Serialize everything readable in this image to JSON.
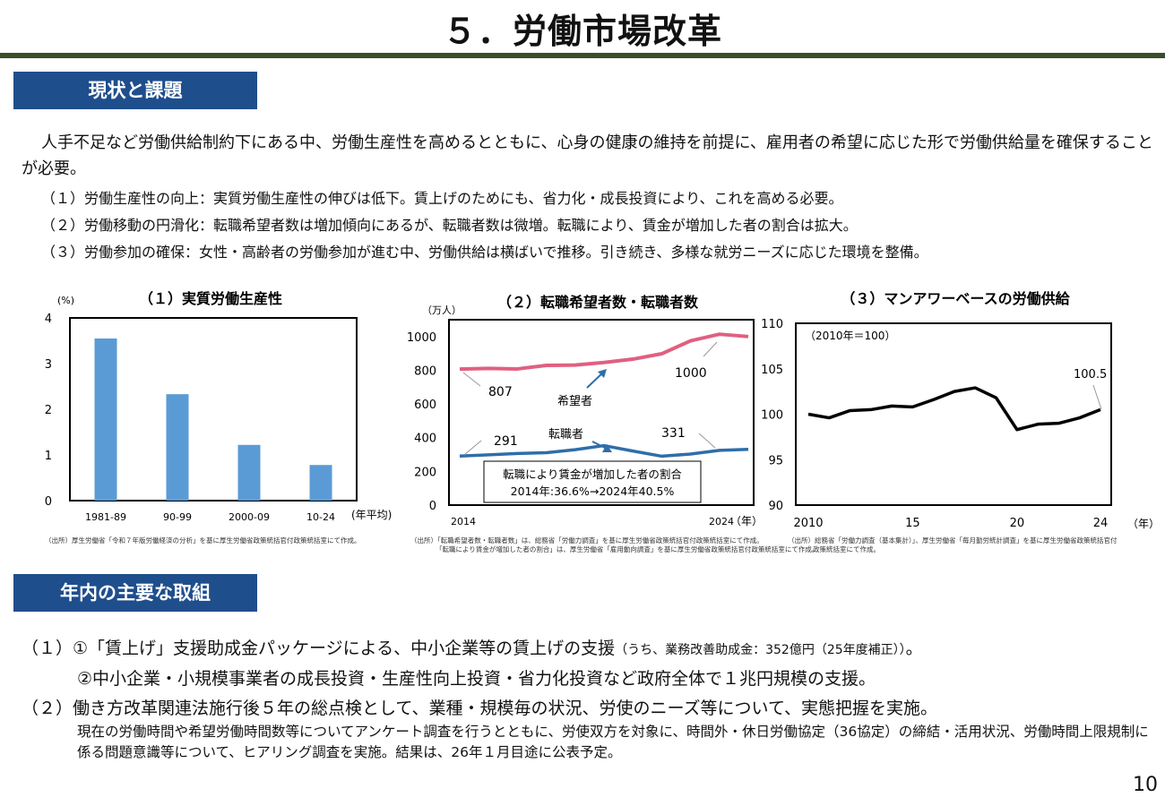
{
  "title": "５．労働市場改革",
  "section1": {
    "heading": "現状と課題",
    "intro": "人手不足など労働供給制約下にある中、労働生産性を高めるとともに、心身の健康の維持を前提に、雇用者の希望に応じた形で労働供給量を確保することが必要。",
    "points": [
      "（１）労働生産性の向上：実質労働生産性の伸びは低下。賃上げのためにも、省力化・成長投資により、これを高める必要。",
      "（２）労働移動の円滑化：転職希望者数は増加傾向にあるが、転職者数は微増。転職により、賃金が増加した者の割合は拡大。",
      "（３）労働参加の確保：女性・高齢者の労働参加が進む中、労働供給は横ばいで推移。引き続き、多様な就労ニーズに応じた環境を整備。"
    ]
  },
  "chart_data": [
    {
      "type": "bar",
      "title": "（１）実質労働生産性",
      "ylabel": "(%)",
      "xlabel": "(年平均)",
      "categories": [
        "1981-89",
        "90-99",
        "2000-09",
        "10-24"
      ],
      "values": [
        3.55,
        2.33,
        1.22,
        0.78
      ],
      "ylim": [
        0,
        4
      ],
      "yticks": [
        "0",
        "1",
        "2",
        "3",
        "4"
      ],
      "color": "#5b9bd5",
      "grid": false,
      "source": "（出所）厚生労働省「令和７年版労働経済の分析」を基に厚生労働省政策統括官付政策統括室にて作成。"
    },
    {
      "type": "line",
      "title": "（２）転職希望者数・転職者数",
      "ylabel": "（万人）",
      "xlabel": "（年）",
      "x": [
        2014,
        2015,
        2016,
        2017,
        2018,
        2019,
        2020,
        2021,
        2022,
        2023,
        2024
      ],
      "xticks": [
        "2014",
        "2024"
      ],
      "ylim": [
        0,
        1100
      ],
      "yticks": [
        "0",
        "200",
        "400",
        "600",
        "800",
        "1000"
      ],
      "series": [
        {
          "name": "希望者",
          "color": "#e06080",
          "values": [
            807,
            811,
            808,
            829,
            831,
            846,
            866,
            898,
            975,
            1014,
            1000
          ]
        },
        {
          "name": "転職者",
          "color": "#2e6eaa",
          "values": [
            291,
            298,
            306,
            311,
            329,
            353,
            321,
            290,
            303,
            325,
            331
          ]
        }
      ],
      "labels": {
        "wish_start": "807",
        "wish_end": "1000",
        "move_start": "291",
        "move_end": "331"
      },
      "note_lines": [
        "転職により賃金が増加した者の割合",
        "2014年:36.6%→2024年40.5%"
      ],
      "source": [
        "（出所）「転職希望者数・転職者数」は、総務省「労働力調査」を基に厚生労働省政策統括官付政策統括室にて作成。",
        "「転職により賃金が増加した者の割合」は、厚生労働省「雇用動向調査」を基に厚生労働省政策統括官付政策統括室にて作成。"
      ]
    },
    {
      "type": "line",
      "title": "（３）マンアワーベースの労働供給",
      "xlabel": "（年）",
      "note": "（2010年＝100）",
      "x": [
        2010,
        2011,
        2012,
        2013,
        2014,
        2015,
        2016,
        2017,
        2018,
        2019,
        2020,
        2021,
        2022,
        2023,
        2024
      ],
      "xticks": [
        "2010",
        "15",
        "20",
        "24"
      ],
      "ylim": [
        90,
        110
      ],
      "yticks": [
        "90",
        "95",
        "100",
        "105",
        "110"
      ],
      "series": [
        {
          "name": "",
          "color": "#000000",
          "values": [
            100.0,
            99.6,
            100.4,
            100.5,
            100.9,
            100.8,
            101.6,
            102.5,
            102.9,
            101.8,
            98.3,
            98.9,
            99.0,
            99.6,
            100.5
          ]
        }
      ],
      "end_label": "100.5",
      "source": [
        "（出所）総務省「労働力調査（基本集計）」、厚生労働省「毎月勤労統計調査」を基に厚生労働省政策統括官付",
        "政策統括室にて作成。"
      ]
    }
  ],
  "section2": {
    "heading": "年内の主要な取組",
    "item1_a": "（１）①「賃上げ」支援助成金パッケージによる、中小企業等の賃上げの支援",
    "item1_a_small": "（うち、業務改善助成金：352億円（25年度補正））",
    "item1_a_end": "。",
    "item1_b": "②中小企業・小規模事業者の成長投資・生産性向上投資・省力化投資など政府全体で１兆円規模の支援。",
    "item2": "（２）働き方改革関連法施行後５年の総点検として、業種・規模毎の状況、労使のニーズ等について、実態把握を実施。",
    "item2_detail": "現在の労働時間や希望労働時間数等についてアンケート調査を行うとともに、労使双方を対象に、時間外・休日労働協定（36協定）の締結・活用状況、労働時間上限規制に係る問題意識等について、ヒアリング調査を実施。結果は、26年１月目途に公表予定。"
  },
  "page_number": "10"
}
